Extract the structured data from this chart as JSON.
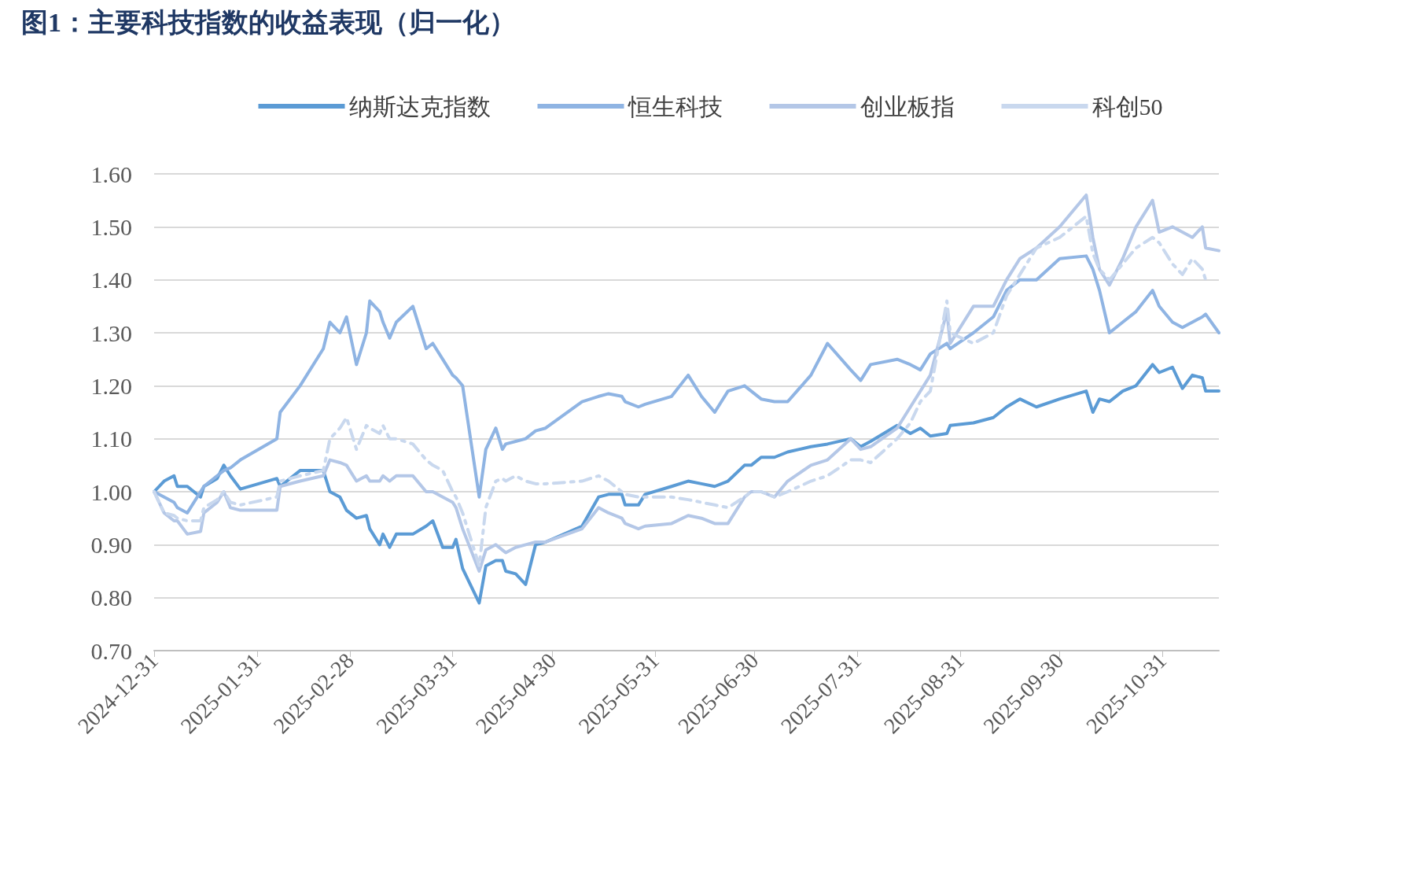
{
  "chart_data": {
    "type": "line",
    "title": "图1：主要科技指数的收益表现（归一化）",
    "x": [
      "2024-12-31",
      "2025-01-03",
      "2025-01-06",
      "2025-01-07",
      "2025-01-10",
      "2025-01-14",
      "2025-01-15",
      "2025-01-19",
      "2025-01-21",
      "2025-01-23",
      "2025-01-26",
      "2025-02-06",
      "2025-02-07",
      "2025-02-13",
      "2025-02-20",
      "2025-02-22",
      "2025-02-25",
      "2025-02-27",
      "2025-03-02",
      "2025-03-05",
      "2025-03-06",
      "2025-03-09",
      "2025-03-10",
      "2025-03-12",
      "2025-03-14",
      "2025-03-19",
      "2025-03-23",
      "2025-03-25",
      "2025-03-28",
      "2025-03-31",
      "2025-04-01",
      "2025-04-03",
      "2025-04-08",
      "2025-04-10",
      "2025-04-13",
      "2025-04-15",
      "2025-04-16",
      "2025-04-19",
      "2025-04-22",
      "2025-04-25",
      "2025-04-28",
      "2025-05-09",
      "2025-05-14",
      "2025-05-17",
      "2025-05-21",
      "2025-05-22",
      "2025-05-26",
      "2025-05-28",
      "2025-06-05",
      "2025-06-10",
      "2025-06-14",
      "2025-06-18",
      "2025-06-22",
      "2025-06-27",
      "2025-06-29",
      "2025-07-02",
      "2025-07-06",
      "2025-07-10",
      "2025-07-17",
      "2025-07-22",
      "2025-07-29",
      "2025-08-01",
      "2025-08-04",
      "2025-08-12",
      "2025-08-16",
      "2025-08-19",
      "2025-08-22",
      "2025-08-27",
      "2025-08-28",
      "2025-09-04",
      "2025-09-10",
      "2025-09-14",
      "2025-09-18",
      "2025-09-23",
      "2025-09-30",
      "2025-10-08",
      "2025-10-10",
      "2025-10-12",
      "2025-10-15",
      "2025-10-19",
      "2025-10-23",
      "2025-10-28",
      "2025-10-30",
      "2025-11-03",
      "2025-11-06",
      "2025-11-09",
      "2025-11-12",
      "2025-11-13",
      "2025-11-17"
    ],
    "series": [
      {
        "name": "纳斯达克指数",
        "color": "#5b9bd5",
        "line_style": "solid",
        "values": [
          1.0,
          1.02,
          1.03,
          1.01,
          1.01,
          0.99,
          1.01,
          1.025,
          1.05,
          1.03,
          1.005,
          1.025,
          1.01,
          1.04,
          1.04,
          1.0,
          0.99,
          0.965,
          0.95,
          0.955,
          0.93,
          0.9,
          0.92,
          0.895,
          0.92,
          0.92,
          0.935,
          0.945,
          0.895,
          0.895,
          0.91,
          0.855,
          0.79,
          0.86,
          0.87,
          0.87,
          0.85,
          0.845,
          0.825,
          0.9,
          0.905,
          0.935,
          0.99,
          0.995,
          0.995,
          0.975,
          0.975,
          0.995,
          1.01,
          1.02,
          1.015,
          1.01,
          1.02,
          1.05,
          1.05,
          1.065,
          1.065,
          1.075,
          1.085,
          1.09,
          1.1,
          1.085,
          1.095,
          1.125,
          1.11,
          1.12,
          1.105,
          1.11,
          1.125,
          1.13,
          1.14,
          1.16,
          1.175,
          1.16,
          1.175,
          1.19,
          1.15,
          1.175,
          1.17,
          1.19,
          1.2,
          1.24,
          1.225,
          1.235,
          1.195,
          1.22,
          1.215,
          1.19,
          1.19
        ]
      },
      {
        "name": "恒生科技",
        "color": "#8fb4e3",
        "line_style": "solid",
        "values": [
          1.0,
          0.99,
          0.98,
          0.97,
          0.96,
          1.0,
          1.01,
          1.03,
          1.04,
          1.045,
          1.06,
          1.1,
          1.15,
          1.2,
          1.27,
          1.32,
          1.3,
          1.33,
          1.24,
          1.3,
          1.36,
          1.34,
          1.32,
          1.29,
          1.32,
          1.35,
          1.27,
          1.28,
          1.25,
          1.22,
          1.215,
          1.2,
          0.99,
          1.08,
          1.12,
          1.08,
          1.09,
          1.095,
          1.1,
          1.115,
          1.12,
          1.17,
          1.18,
          1.185,
          1.18,
          1.17,
          1.16,
          1.165,
          1.18,
          1.22,
          1.18,
          1.15,
          1.19,
          1.2,
          1.19,
          1.175,
          1.17,
          1.17,
          1.22,
          1.28,
          1.23,
          1.21,
          1.24,
          1.25,
          1.24,
          1.23,
          1.26,
          1.28,
          1.27,
          1.3,
          1.33,
          1.38,
          1.4,
          1.4,
          1.44,
          1.445,
          1.42,
          1.38,
          1.3,
          1.32,
          1.34,
          1.38,
          1.35,
          1.32,
          1.31,
          1.32,
          1.33,
          1.335,
          1.3
        ]
      },
      {
        "name": "创业板指",
        "color": "#b4c7e7",
        "line_style": "solid",
        "values": [
          1.0,
          0.96,
          0.945,
          0.945,
          0.92,
          0.925,
          0.96,
          0.98,
          1.0,
          0.97,
          0.965,
          0.965,
          1.01,
          1.02,
          1.03,
          1.06,
          1.055,
          1.05,
          1.02,
          1.03,
          1.02,
          1.02,
          1.03,
          1.02,
          1.03,
          1.03,
          1.0,
          1.0,
          0.99,
          0.98,
          0.97,
          0.93,
          0.85,
          0.89,
          0.9,
          0.89,
          0.885,
          0.895,
          0.9,
          0.905,
          0.905,
          0.93,
          0.97,
          0.96,
          0.95,
          0.94,
          0.93,
          0.935,
          0.94,
          0.955,
          0.95,
          0.94,
          0.94,
          0.99,
          1.0,
          1.0,
          0.99,
          1.02,
          1.05,
          1.06,
          1.1,
          1.08,
          1.085,
          1.12,
          1.16,
          1.19,
          1.22,
          1.34,
          1.28,
          1.35,
          1.35,
          1.4,
          1.44,
          1.46,
          1.5,
          1.56,
          1.48,
          1.42,
          1.39,
          1.44,
          1.5,
          1.55,
          1.49,
          1.5,
          1.49,
          1.48,
          1.5,
          1.46,
          1.455
        ]
      },
      {
        "name": "科创50",
        "color": "#c9d8ee",
        "line_style": "dashed",
        "values": [
          1.0,
          0.96,
          0.955,
          0.95,
          0.945,
          0.945,
          0.97,
          0.985,
          1.0,
          0.98,
          0.975,
          0.99,
          1.02,
          1.03,
          1.04,
          1.1,
          1.12,
          1.14,
          1.08,
          1.125,
          1.12,
          1.11,
          1.125,
          1.1,
          1.1,
          1.09,
          1.06,
          1.05,
          1.04,
          1.0,
          0.99,
          0.96,
          0.86,
          0.97,
          1.02,
          1.025,
          1.02,
          1.03,
          1.02,
          1.015,
          1.015,
          1.02,
          1.03,
          1.02,
          1.0,
          0.995,
          0.99,
          0.99,
          0.99,
          0.985,
          0.98,
          0.975,
          0.97,
          0.99,
          1.0,
          1.0,
          0.99,
          1.0,
          1.02,
          1.03,
          1.06,
          1.06,
          1.055,
          1.1,
          1.13,
          1.17,
          1.19,
          1.36,
          1.3,
          1.28,
          1.3,
          1.37,
          1.41,
          1.46,
          1.48,
          1.52,
          1.45,
          1.42,
          1.4,
          1.43,
          1.46,
          1.48,
          1.47,
          1.43,
          1.41,
          1.44,
          1.42,
          1.4,
          null
        ]
      }
    ],
    "xlim": [
      "2024-12-31",
      "2025-11-17"
    ],
    "xticks": [
      "2024-12-31",
      "2025-01-31",
      "2025-02-28",
      "2025-03-31",
      "2025-04-30",
      "2025-05-31",
      "2025-06-30",
      "2025-07-31",
      "2025-08-31",
      "2025-09-30",
      "2025-10-31"
    ],
    "ylim": [
      0.7,
      1.6
    ],
    "yticks": [
      {
        "value": 0.7,
        "label": "0.70"
      },
      {
        "value": 0.8,
        "label": "0.80"
      },
      {
        "value": 0.9,
        "label": "0.90"
      },
      {
        "value": 1.0,
        "label": "1.00"
      },
      {
        "value": 1.1,
        "label": "1.10"
      },
      {
        "value": 1.2,
        "label": "1.20"
      },
      {
        "value": 1.3,
        "label": "1.30"
      },
      {
        "value": 1.4,
        "label": "1.40"
      },
      {
        "value": 1.5,
        "label": "1.50"
      },
      {
        "value": 1.6,
        "label": "1.60"
      }
    ],
    "grid": "y",
    "legend": "top",
    "marker": "none"
  }
}
